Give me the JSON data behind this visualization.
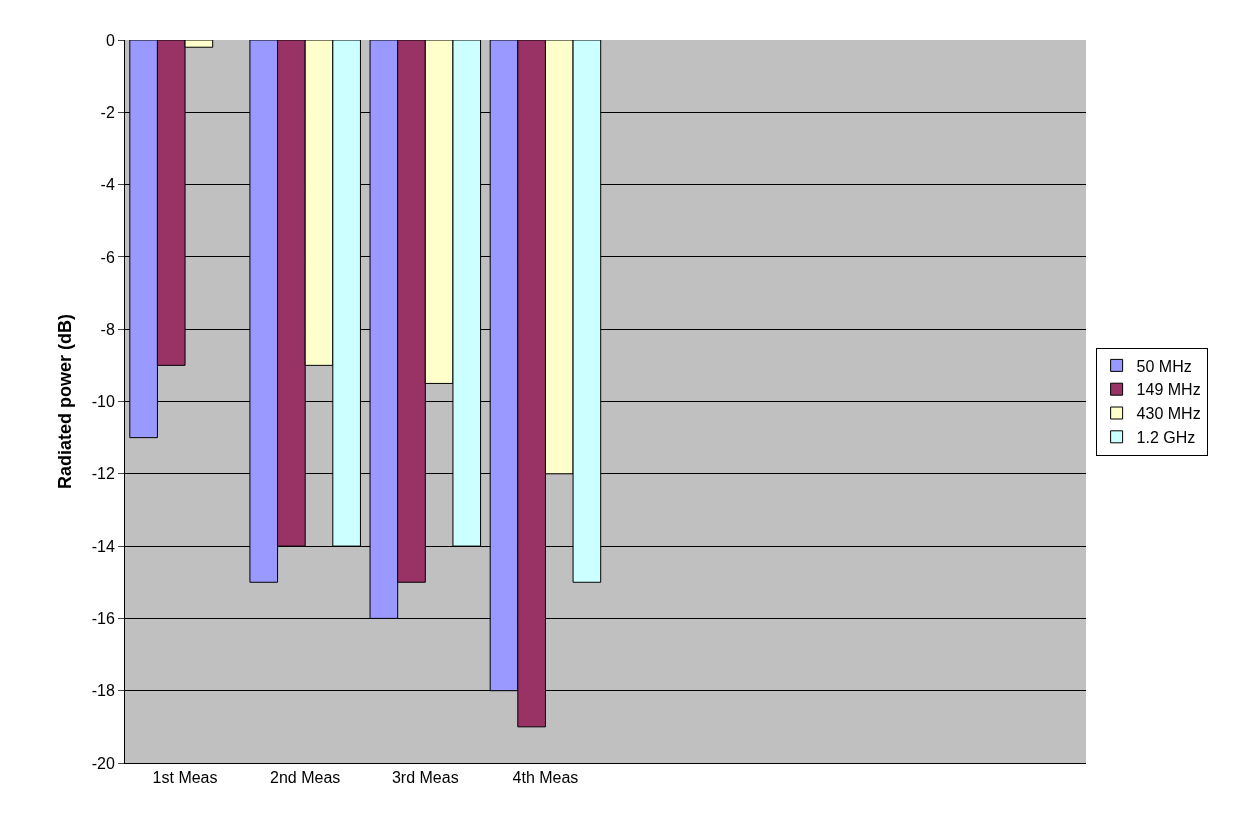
{
  "chart_data": {
    "type": "bar",
    "ylabel": "Radiated power (dB)",
    "categories": [
      "1st Meas",
      "2nd Meas",
      "3rd Meas",
      "4th Meas",
      null,
      null,
      null,
      null
    ],
    "series": [
      {
        "name": "50 MHz",
        "color": "#9999ff",
        "values": [
          -11,
          -15,
          -16,
          -18,
          null,
          null,
          null,
          null
        ]
      },
      {
        "name": "149 MHz",
        "color": "#993366",
        "values": [
          -9,
          -14,
          -15,
          -19,
          null,
          null,
          null,
          null
        ]
      },
      {
        "name": "430 MHz",
        "color": "#ffffcc",
        "values": [
          -0.2,
          -9,
          -9.5,
          -12,
          null,
          null,
          null,
          null
        ]
      },
      {
        "name": "1.2 GHz",
        "color": "#ccffff",
        "values": [
          null,
          -14,
          -14,
          -15,
          null,
          null,
          null,
          null
        ]
      }
    ],
    "ylim": [
      -20,
      0
    ],
    "yticks": [
      -20,
      -18,
      -16,
      -14,
      -12,
      -10,
      -8,
      -6,
      -4,
      -2,
      0
    ],
    "grid": "y",
    "legend": "right"
  }
}
